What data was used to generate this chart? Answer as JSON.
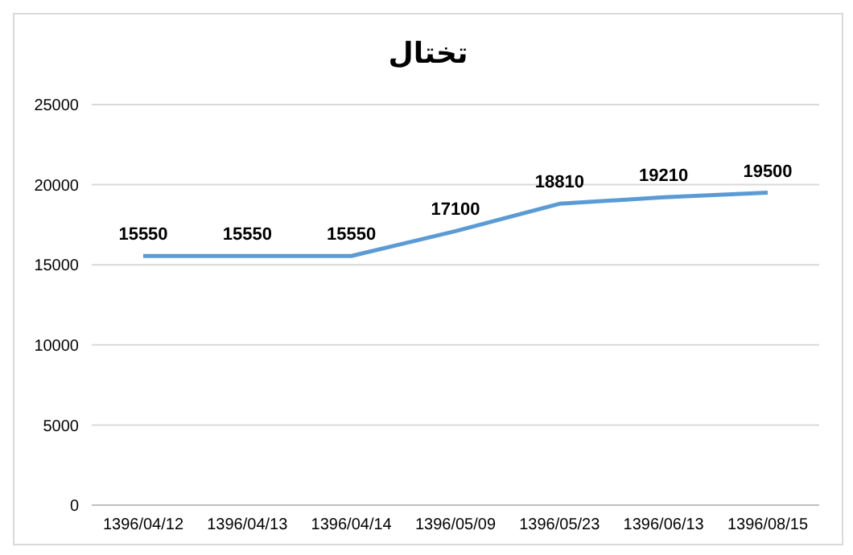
{
  "chart_data": {
    "type": "line",
    "title": "تختال",
    "categories": [
      "1396/04/12",
      "1396/04/13",
      "1396/04/14",
      "1396/05/09",
      "1396/05/23",
      "1396/06/13",
      "1396/08/15"
    ],
    "series": [
      {
        "color": "#5b9bd5",
        "values": [
          15550,
          15550,
          15550,
          17100,
          18810,
          19210,
          19500
        ]
      }
    ],
    "ylim": [
      0,
      25000
    ],
    "yticks": [
      0,
      5000,
      10000,
      15000,
      20000,
      25000
    ],
    "grid": "y",
    "marker": "none",
    "line_style": "solid",
    "data_labels": true
  }
}
